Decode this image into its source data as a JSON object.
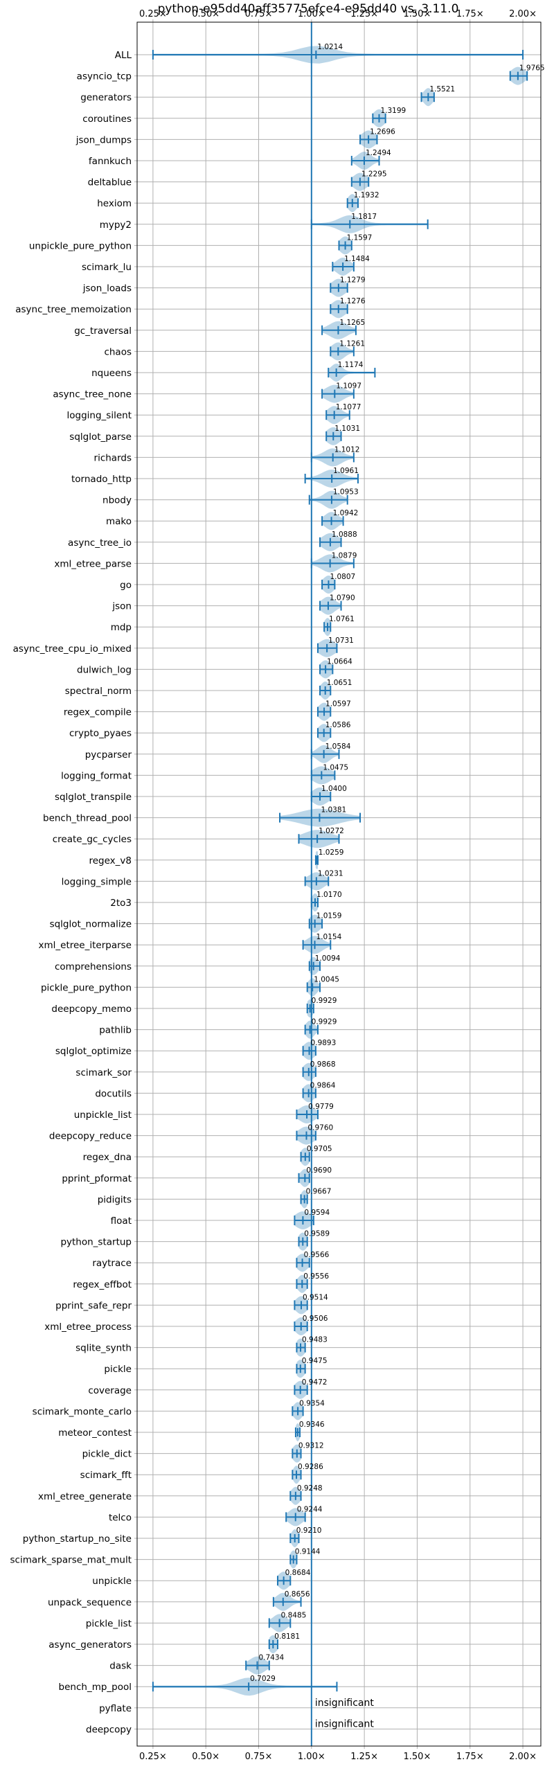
{
  "chart_data": {
    "type": "violin",
    "title": "python-e95dd40aff35775efce4-e95dd40 vs. 3.11.0",
    "xlabel": "",
    "ylabel": "",
    "xlim": [
      0.175,
      2.085
    ],
    "x_ticks": [
      0.25,
      0.5,
      0.75,
      1.0,
      1.25,
      1.5,
      1.75,
      2.0
    ],
    "x_tick_labels": [
      "0.25×",
      "0.50×",
      "0.75×",
      "1.00×",
      "1.25×",
      "1.50×",
      "1.75×",
      "2.00×"
    ],
    "grid": true,
    "reference_line": 1.0,
    "colors": {
      "violin": "#1f77b4",
      "errorbar": "#1f77b4"
    },
    "benchmarks": [
      {
        "name": "ALL",
        "value": 1.0214,
        "label": "1.0214",
        "low": 0.25,
        "high": 2.0,
        "spread": 0.08
      },
      {
        "name": "asyncio_tcp",
        "value": 1.9765,
        "label": "1.9765",
        "low": 1.94,
        "high": 2.02,
        "spread": 0.03
      },
      {
        "name": "generators",
        "value": 1.5521,
        "label": "1.5521",
        "low": 1.52,
        "high": 1.58,
        "spread": 0.02
      },
      {
        "name": "coroutines",
        "value": 1.3199,
        "label": "1.3199",
        "low": 1.29,
        "high": 1.35,
        "spread": 0.025
      },
      {
        "name": "json_dumps",
        "value": 1.2696,
        "label": "1.2696",
        "low": 1.23,
        "high": 1.31,
        "spread": 0.03
      },
      {
        "name": "fannkuch",
        "value": 1.2494,
        "label": "1.2494",
        "low": 1.19,
        "high": 1.32,
        "spread": 0.03
      },
      {
        "name": "deltablue",
        "value": 1.2295,
        "label": "1.2295",
        "low": 1.19,
        "high": 1.27,
        "spread": 0.03
      },
      {
        "name": "hexiom",
        "value": 1.1932,
        "label": "1.1932",
        "low": 1.17,
        "high": 1.22,
        "spread": 0.02
      },
      {
        "name": "mypy2",
        "value": 1.1817,
        "label": "1.1817",
        "low": 1.0,
        "high": 1.55,
        "spread": 0.05
      },
      {
        "name": "unpickle_pure_python",
        "value": 1.1597,
        "label": "1.1597",
        "low": 1.13,
        "high": 1.19,
        "spread": 0.025
      },
      {
        "name": "scimark_lu",
        "value": 1.1484,
        "label": "1.1484",
        "low": 1.1,
        "high": 1.2,
        "spread": 0.03
      },
      {
        "name": "json_loads",
        "value": 1.1279,
        "label": "1.1279",
        "low": 1.09,
        "high": 1.17,
        "spread": 0.03
      },
      {
        "name": "async_tree_memoization",
        "value": 1.1276,
        "label": "1.1276",
        "low": 1.09,
        "high": 1.17,
        "spread": 0.03
      },
      {
        "name": "gc_traversal",
        "value": 1.1265,
        "label": "1.1265",
        "low": 1.05,
        "high": 1.21,
        "spread": 0.04
      },
      {
        "name": "chaos",
        "value": 1.1261,
        "label": "1.1261",
        "low": 1.09,
        "high": 1.2,
        "spread": 0.03
      },
      {
        "name": "nqueens",
        "value": 1.1174,
        "label": "1.1174",
        "low": 1.08,
        "high": 1.3,
        "spread": 0.025
      },
      {
        "name": "async_tree_none",
        "value": 1.1097,
        "label": "1.1097",
        "low": 1.05,
        "high": 1.2,
        "spread": 0.04
      },
      {
        "name": "logging_silent",
        "value": 1.1077,
        "label": "1.1077",
        "low": 1.07,
        "high": 1.18,
        "spread": 0.03
      },
      {
        "name": "sqlglot_parse",
        "value": 1.1031,
        "label": "1.1031",
        "low": 1.07,
        "high": 1.14,
        "spread": 0.03
      },
      {
        "name": "richards",
        "value": 1.1012,
        "label": "1.1012",
        "low": 1.0,
        "high": 1.2,
        "spread": 0.04
      },
      {
        "name": "tornado_http",
        "value": 1.0961,
        "label": "1.0961",
        "low": 0.97,
        "high": 1.22,
        "spread": 0.045
      },
      {
        "name": "nbody",
        "value": 1.0953,
        "label": "1.0953",
        "low": 0.99,
        "high": 1.17,
        "spread": 0.035
      },
      {
        "name": "mako",
        "value": 1.0942,
        "label": "1.0942",
        "low": 1.05,
        "high": 1.15,
        "spread": 0.03
      },
      {
        "name": "async_tree_io",
        "value": 1.0888,
        "label": "1.0888",
        "low": 1.04,
        "high": 1.14,
        "spread": 0.035
      },
      {
        "name": "xml_etree_parse",
        "value": 1.0879,
        "label": "1.0879",
        "low": 1.0,
        "high": 1.2,
        "spread": 0.04
      },
      {
        "name": "go",
        "value": 1.0807,
        "label": "1.0807",
        "low": 1.05,
        "high": 1.11,
        "spread": 0.025
      },
      {
        "name": "json",
        "value": 1.079,
        "label": "1.0790",
        "low": 1.04,
        "high": 1.14,
        "spread": 0.03
      },
      {
        "name": "mdp",
        "value": 1.0761,
        "label": "1.0761",
        "low": 1.06,
        "high": 1.09,
        "spread": 0.015
      },
      {
        "name": "async_tree_cpu_io_mixed",
        "value": 1.0731,
        "label": "1.0731",
        "low": 1.03,
        "high": 1.12,
        "spread": 0.035
      },
      {
        "name": "dulwich_log",
        "value": 1.0664,
        "label": "1.0664",
        "low": 1.04,
        "high": 1.1,
        "spread": 0.025
      },
      {
        "name": "spectral_norm",
        "value": 1.0651,
        "label": "1.0651",
        "low": 1.04,
        "high": 1.09,
        "spread": 0.02
      },
      {
        "name": "regex_compile",
        "value": 1.0597,
        "label": "1.0597",
        "low": 1.03,
        "high": 1.09,
        "spread": 0.025
      },
      {
        "name": "crypto_pyaes",
        "value": 1.0586,
        "label": "1.0586",
        "low": 1.03,
        "high": 1.09,
        "spread": 0.025
      },
      {
        "name": "pycparser",
        "value": 1.0584,
        "label": "1.0584",
        "low": 1.0,
        "high": 1.13,
        "spread": 0.03
      },
      {
        "name": "logging_format",
        "value": 1.0475,
        "label": "1.0475",
        "low": 1.0,
        "high": 1.11,
        "spread": 0.04
      },
      {
        "name": "sqlglot_transpile",
        "value": 1.04,
        "label": "1.0400",
        "low": 1.0,
        "high": 1.09,
        "spread": 0.035
      },
      {
        "name": "bench_thread_pool",
        "value": 1.0381,
        "label": "1.0381",
        "low": 0.85,
        "high": 1.23,
        "spread": 0.09
      },
      {
        "name": "create_gc_cycles",
        "value": 1.0272,
        "label": "1.0272",
        "low": 0.94,
        "high": 1.13,
        "spread": 0.06
      },
      {
        "name": "regex_v8",
        "value": 1.0259,
        "label": "1.0259",
        "low": 1.02,
        "high": 1.03,
        "spread": 0.01
      },
      {
        "name": "logging_simple",
        "value": 1.0231,
        "label": "1.0231",
        "low": 0.97,
        "high": 1.08,
        "spread": 0.035
      },
      {
        "name": "2to3",
        "value": 1.017,
        "label": "1.0170",
        "low": 1.0,
        "high": 1.03,
        "spread": 0.015
      },
      {
        "name": "sqlglot_normalize",
        "value": 1.0159,
        "label": "1.0159",
        "low": 0.99,
        "high": 1.05,
        "spread": 0.025
      },
      {
        "name": "xml_etree_iterparse",
        "value": 1.0154,
        "label": "1.0154",
        "low": 0.96,
        "high": 1.09,
        "spread": 0.035
      },
      {
        "name": "comprehensions",
        "value": 1.0094,
        "label": "1.0094",
        "low": 0.99,
        "high": 1.04,
        "spread": 0.02
      },
      {
        "name": "pickle_pure_python",
        "value": 1.0045,
        "label": "1.0045",
        "low": 0.98,
        "high": 1.04,
        "spread": 0.02
      },
      {
        "name": "deepcopy_memo",
        "value": 0.9929,
        "label": "0.9929",
        "low": 0.98,
        "high": 1.01,
        "spread": 0.015
      },
      {
        "name": "pathlib",
        "value": 0.9929,
        "label": "0.9929",
        "low": 0.97,
        "high": 1.03,
        "spread": 0.02
      },
      {
        "name": "sqlglot_optimize",
        "value": 0.9893,
        "label": "0.9893",
        "low": 0.96,
        "high": 1.02,
        "spread": 0.025
      },
      {
        "name": "scimark_sor",
        "value": 0.9868,
        "label": "0.9868",
        "low": 0.96,
        "high": 1.02,
        "spread": 0.025
      },
      {
        "name": "docutils",
        "value": 0.9864,
        "label": "0.9864",
        "low": 0.96,
        "high": 1.02,
        "spread": 0.025
      },
      {
        "name": "unpickle_list",
        "value": 0.9779,
        "label": "0.9779",
        "low": 0.93,
        "high": 1.03,
        "spread": 0.035
      },
      {
        "name": "deepcopy_reduce",
        "value": 0.976,
        "label": "0.9760",
        "low": 0.93,
        "high": 1.02,
        "spread": 0.035
      },
      {
        "name": "regex_dna",
        "value": 0.9705,
        "label": "0.9705",
        "low": 0.95,
        "high": 0.99,
        "spread": 0.02
      },
      {
        "name": "pprint_pformat",
        "value": 0.969,
        "label": "0.9690",
        "low": 0.94,
        "high": 0.99,
        "spread": 0.02
      },
      {
        "name": "pidigits",
        "value": 0.9667,
        "label": "0.9667",
        "low": 0.95,
        "high": 0.98,
        "spread": 0.015
      },
      {
        "name": "float",
        "value": 0.9594,
        "label": "0.9594",
        "low": 0.92,
        "high": 1.01,
        "spread": 0.035
      },
      {
        "name": "python_startup",
        "value": 0.9589,
        "label": "0.9589",
        "low": 0.94,
        "high": 0.98,
        "spread": 0.02
      },
      {
        "name": "raytrace",
        "value": 0.9566,
        "label": "0.9566",
        "low": 0.93,
        "high": 0.99,
        "spread": 0.025
      },
      {
        "name": "regex_effbot",
        "value": 0.9556,
        "label": "0.9556",
        "low": 0.93,
        "high": 0.98,
        "spread": 0.02
      },
      {
        "name": "pprint_safe_repr",
        "value": 0.9514,
        "label": "0.9514",
        "low": 0.92,
        "high": 0.98,
        "spread": 0.025
      },
      {
        "name": "xml_etree_process",
        "value": 0.9506,
        "label": "0.9506",
        "low": 0.92,
        "high": 0.98,
        "spread": 0.025
      },
      {
        "name": "sqlite_synth",
        "value": 0.9483,
        "label": "0.9483",
        "low": 0.93,
        "high": 0.97,
        "spread": 0.02
      },
      {
        "name": "pickle",
        "value": 0.9475,
        "label": "0.9475",
        "low": 0.93,
        "high": 0.97,
        "spread": 0.02
      },
      {
        "name": "coverage",
        "value": 0.9472,
        "label": "0.9472",
        "low": 0.92,
        "high": 0.98,
        "spread": 0.025
      },
      {
        "name": "scimark_monte_carlo",
        "value": 0.9354,
        "label": "0.9354",
        "low": 0.91,
        "high": 0.96,
        "spread": 0.02
      },
      {
        "name": "meteor_contest",
        "value": 0.9346,
        "label": "0.9346",
        "low": 0.925,
        "high": 0.945,
        "spread": 0.01
      },
      {
        "name": "pickle_dict",
        "value": 0.9312,
        "label": "0.9312",
        "low": 0.91,
        "high": 0.95,
        "spread": 0.02
      },
      {
        "name": "scimark_fft",
        "value": 0.9286,
        "label": "0.9286",
        "low": 0.91,
        "high": 0.95,
        "spread": 0.015
      },
      {
        "name": "xml_etree_generate",
        "value": 0.9248,
        "label": "0.9248",
        "low": 0.9,
        "high": 0.95,
        "spread": 0.02
      },
      {
        "name": "telco",
        "value": 0.9244,
        "label": "0.9244",
        "low": 0.88,
        "high": 0.97,
        "spread": 0.03
      },
      {
        "name": "python_startup_no_site",
        "value": 0.921,
        "label": "0.9210",
        "low": 0.9,
        "high": 0.94,
        "spread": 0.015
      },
      {
        "name": "scimark_sparse_mat_mult",
        "value": 0.9144,
        "label": "0.9144",
        "low": 0.9,
        "high": 0.93,
        "spread": 0.015
      },
      {
        "name": "unpickle",
        "value": 0.8684,
        "label": "0.8684",
        "low": 0.84,
        "high": 0.9,
        "spread": 0.025
      },
      {
        "name": "unpack_sequence",
        "value": 0.8656,
        "label": "0.8656",
        "low": 0.82,
        "high": 0.95,
        "spread": 0.03
      },
      {
        "name": "pickle_list",
        "value": 0.8485,
        "label": "0.8485",
        "low": 0.8,
        "high": 0.9,
        "spread": 0.03
      },
      {
        "name": "async_generators",
        "value": 0.8181,
        "label": "0.8181",
        "low": 0.8,
        "high": 0.84,
        "spread": 0.02
      },
      {
        "name": "dask",
        "value": 0.7434,
        "label": "0.7434",
        "low": 0.69,
        "high": 0.8,
        "spread": 0.035
      },
      {
        "name": "bench_mp_pool",
        "value": 0.7029,
        "label": "0.7029",
        "low": 0.25,
        "high": 1.12,
        "spread": 0.06
      },
      {
        "name": "pyflate",
        "value": null,
        "label": "insignificant"
      },
      {
        "name": "deepcopy",
        "value": null,
        "label": "insignificant"
      }
    ]
  }
}
